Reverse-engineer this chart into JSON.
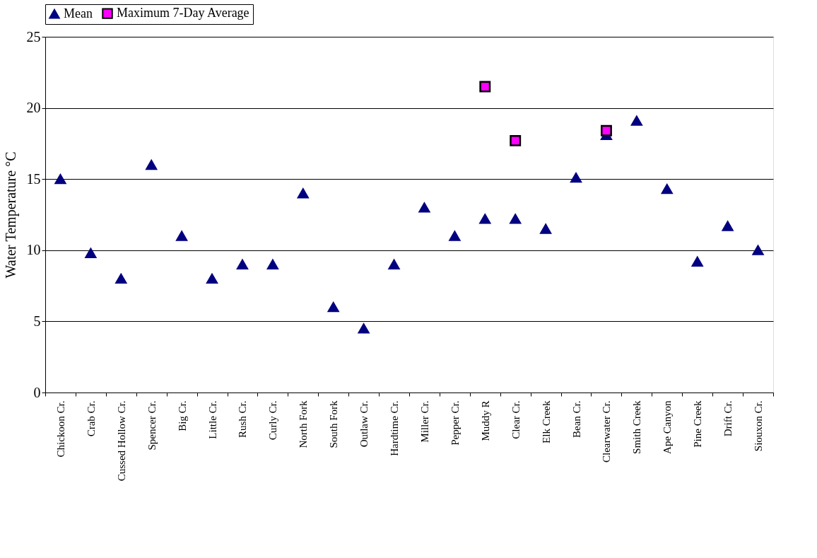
{
  "chart_data": {
    "type": "scatter",
    "ylabel": "Water Temperature °C",
    "categories": [
      "Chickoon Cr.",
      "Crab Cr.",
      "Cussed Hollow Cr.",
      "Spencer Cr.",
      "Big Cr.",
      "Little Cr.",
      "Rush Cr.",
      "Curly Cr.",
      "North Fork",
      "South Fork",
      "Outlaw Cr.",
      "Hardtime Cr.",
      "Miller Cr.",
      "Pepper Cr.",
      "Muddy R",
      "Clear Cr.",
      "Elk Creek",
      "Bean Cr.",
      "Clearwater Cr.",
      "Smith Creek",
      "Ape Canyon",
      "Pine Creek",
      "Drift Cr.",
      "Siouxon Cr."
    ],
    "series": [
      {
        "name": "Mean",
        "color": "#000080",
        "marker": "triangle",
        "values": [
          15,
          9.8,
          8,
          16,
          11,
          8,
          9,
          9,
          14,
          6,
          4.5,
          9,
          13,
          11,
          12.2,
          12.2,
          11.5,
          15.1,
          18.1,
          19.1,
          14.3,
          9.2,
          11.7,
          10
        ]
      },
      {
        "name": "Maximum 7-Day Average",
        "color": "#ff00ff",
        "marker": "square",
        "values": [
          null,
          null,
          null,
          null,
          null,
          null,
          null,
          null,
          null,
          null,
          null,
          null,
          null,
          null,
          21.5,
          17.7,
          null,
          null,
          18.4,
          null,
          null,
          null,
          null,
          null
        ]
      }
    ],
    "ylim": [
      0,
      25
    ],
    "yticks": [
      0,
      5,
      10,
      15,
      20,
      25
    ],
    "grid": "y",
    "legend": "top"
  }
}
